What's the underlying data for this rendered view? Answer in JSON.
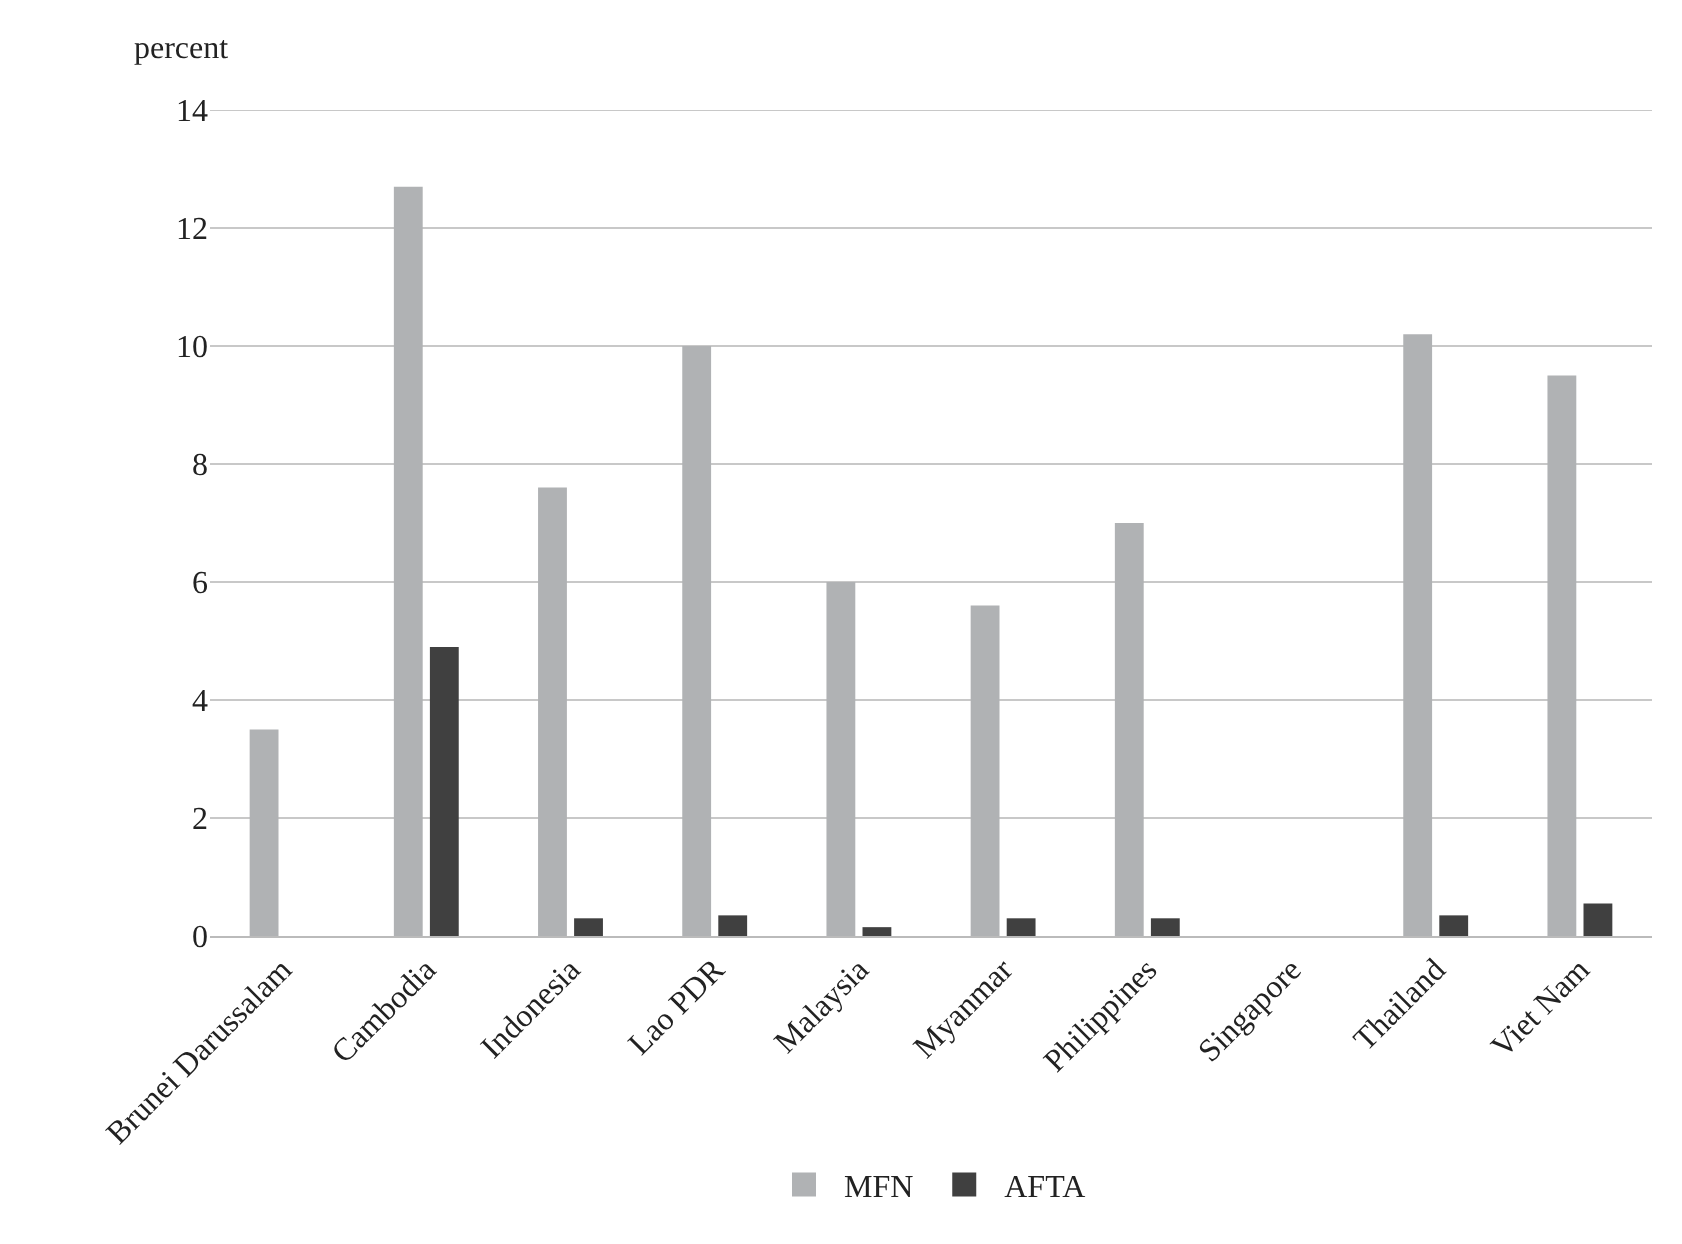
{
  "chart_data": {
    "type": "bar",
    "ylabel": "percent",
    "categories": [
      "Brunei Darussalam",
      "Cambodia",
      "Indonesia",
      "Lao PDR",
      "Malaysia",
      "Myanmar",
      "Philippines",
      "Singapore",
      "Thailand",
      "Viet Nam"
    ],
    "series": [
      {
        "name": "MFN",
        "color": "#b0b2b4",
        "values": [
          3.5,
          12.7,
          7.6,
          10.0,
          6.0,
          5.6,
          7.0,
          0,
          10.2,
          9.5
        ]
      },
      {
        "name": "AFTA",
        "color": "#404040",
        "values": [
          0,
          4.9,
          0.3,
          0.35,
          0.15,
          0.3,
          0.3,
          0,
          0.35,
          0.55
        ]
      }
    ],
    "ylim": [
      0,
      14
    ],
    "yticks": [
      0,
      2,
      4,
      6,
      8,
      10,
      12,
      14
    ],
    "grid": "y",
    "legend": "bottom"
  }
}
